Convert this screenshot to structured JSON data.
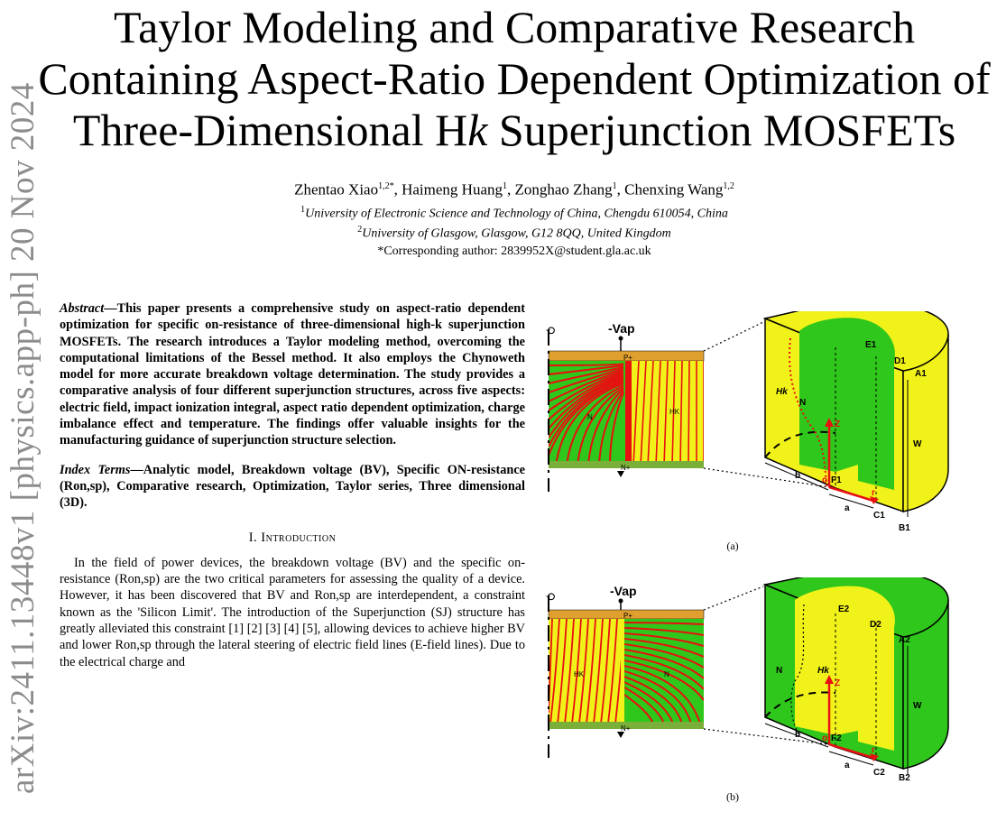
{
  "arxiv_watermark": "arXiv:2411.13448v1  [physics.app-ph]  20 Nov 2024",
  "title_lines": [
    "Taylor Modeling and Comparative Research",
    "Containing Aspect-Ratio Dependent Optimization of",
    "Three-Dimensional H",
    "k",
    " Superjunction MOSFETs"
  ],
  "authors": {
    "a1": "Zhentao Xiao",
    "a1_sup": "1,2*",
    "a2": "Haimeng Huang",
    "a2_sup": "1",
    "a3": "Zonghao Zhang",
    "a3_sup": "1",
    "a4": "Chenxing Wang",
    "a4_sup": "1,2"
  },
  "affiliations": [
    {
      "sup": "1",
      "text": "University of Electronic Science and Technology of China, Chengdu 610054, China"
    },
    {
      "sup": "2",
      "text": "University of Glasgow, Glasgow, G12 8QQ, United Kingdom"
    }
  ],
  "corresponding": "*Corresponding author: 2839952X@student.gla.ac.uk",
  "abstract": {
    "label": "Abstract",
    "text": "—This paper presents a comprehensive study on aspect-ratio dependent optimization for specific on-resistance of three-dimensional high-k superjunction MOSFETs. The research introduces a Taylor modeling method, overcoming the computational limitations of the Bessel method. It also employs the Chynoweth model for more accurate breakdown voltage determination. The study provides a comparative analysis of four different superjunction structures, across five aspects: electric field, impact ionization integral, aspect ratio dependent optimization, charge imbalance effect and temperature. The findings offer valuable insights for the manufacturing guidance of superjunction structure selection."
  },
  "index_terms": {
    "label": "Index Terms",
    "text": "—Analytic model, Breakdown voltage (BV), Specific ON-resistance (Ron,sp), Comparative research, Optimization, Taylor series, Three dimensional (3D)."
  },
  "section": "I. Introduction",
  "intro": "In the field of power devices, the breakdown voltage (BV) and the specific on-resistance (Ron,sp) are the two critical parameters for assessing the quality of a device. However, it has been discovered that BV and Ron,sp are interdependent, a constraint known as the 'Silicon Limit'. The introduction of the Superjunction (SJ) structure has greatly alleviated this constraint [1] [2] [3] [4] [5], allowing devices to achieve higher BV and lower Ron,sp through the lateral steering of electric field lines (E-field lines). Due to the electrical charge and",
  "figures": {
    "a": {
      "caption": "(a)",
      "vap": "-Vap",
      "pplus": "P+",
      "nplus": "N+",
      "hk": "HK",
      "n": "N",
      "labels3d": {
        "e": "E1",
        "d": "D1",
        "a": "A1",
        "hk": "Hk",
        "n": "N",
        "z": "Z",
        "w": "W",
        "b": "b",
        "o": "o",
        "f": "F1",
        "r": "r",
        "aa": "a",
        "c": "C1",
        "bb": "B1"
      },
      "colors": {
        "green": "#2fc71b",
        "yellow": "#f2f21b",
        "red": "#e81010",
        "orange": "#e0a030"
      }
    },
    "b": {
      "caption": "(b)",
      "vap": "-Vap",
      "pplus": "P+",
      "nplus": "N+",
      "hk": "HK",
      "n": "N",
      "labels3d": {
        "e": "E2",
        "d": "D2",
        "a": "A2",
        "hk": "Hk",
        "n": "N",
        "z": "Z",
        "w": "W",
        "b": "b",
        "o": "o",
        "f": "F2",
        "r": "r",
        "aa": "a",
        "c": "C2",
        "bb": "B2"
      }
    }
  }
}
